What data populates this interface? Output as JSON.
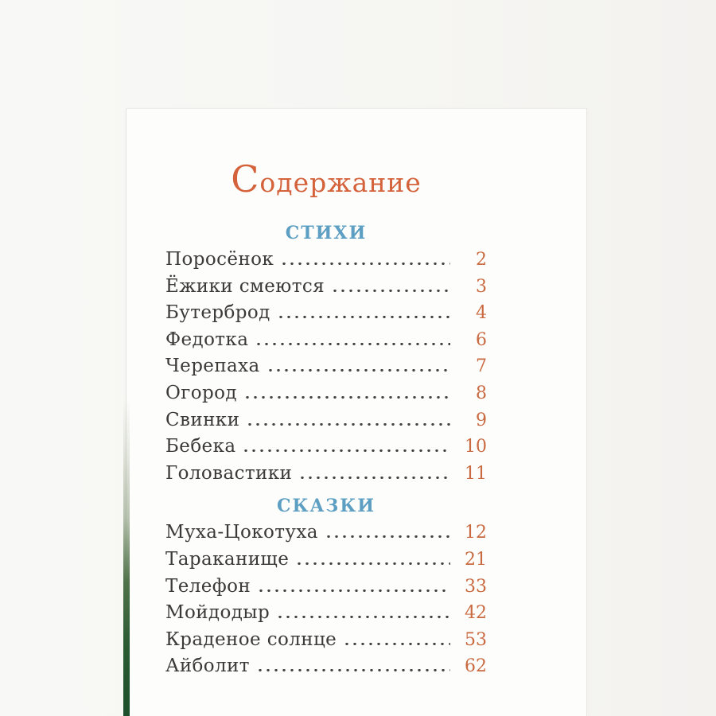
{
  "page": {
    "title": "Содержание",
    "sections": [
      {
        "heading": "СТИХИ",
        "entries": [
          {
            "title": "Поросёнок",
            "page": "2"
          },
          {
            "title": "Ёжики смеются",
            "page": "3"
          },
          {
            "title": "Бутерброд",
            "page": "4"
          },
          {
            "title": "Федотка",
            "page": "6"
          },
          {
            "title": "Черепаха",
            "page": "7"
          },
          {
            "title": "Огород",
            "page": "8"
          },
          {
            "title": "Свинки",
            "page": "9"
          },
          {
            "title": "Бебека",
            "page": "10"
          },
          {
            "title": "Головастики",
            "page": "11"
          }
        ]
      },
      {
        "heading": "СКАЗКИ",
        "entries": [
          {
            "title": "Муха-Цокотуха",
            "page": "12"
          },
          {
            "title": "Тараканище",
            "page": "21"
          },
          {
            "title": "Телефон",
            "page": "33"
          },
          {
            "title": "Мойдодыр",
            "page": "42"
          },
          {
            "title": "Краденое солнце",
            "page": "53"
          },
          {
            "title": "Айболит",
            "page": "62"
          }
        ]
      }
    ]
  },
  "colors": {
    "title_orange": "#d4623b",
    "heading_blue": "#5d9fc2",
    "page_number_orange": "#c96a40",
    "entry_text": "#3c3a37",
    "page_edge_green": "#2a5a33",
    "paper": "#fdfdfc",
    "scan_background": "#f6f6f3"
  }
}
